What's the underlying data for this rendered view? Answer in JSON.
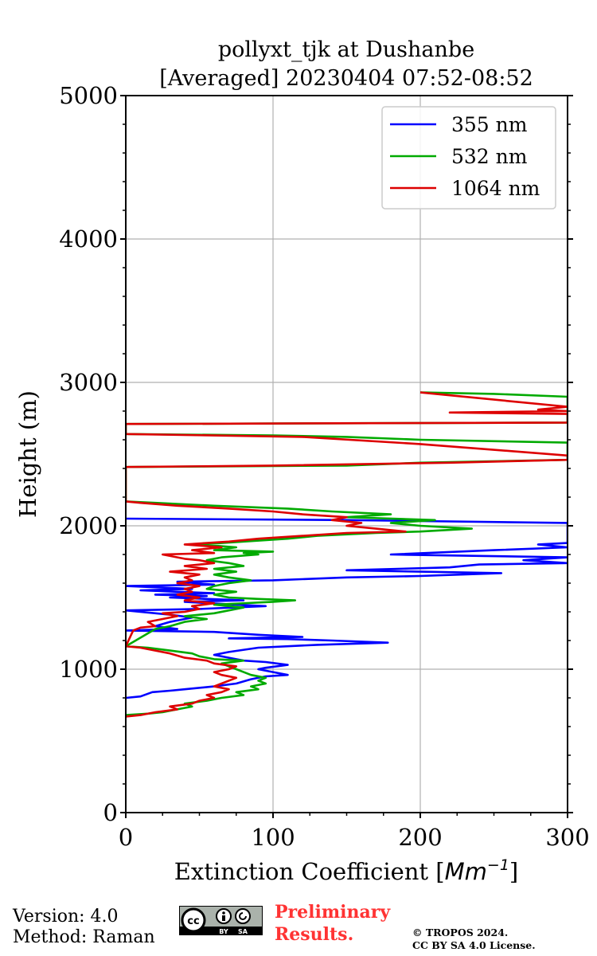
{
  "chart_data": {
    "type": "line",
    "title_line1": "pollyxt_tjk at Dushanbe",
    "title_line2": "[Averaged] 20230404 07:52-08:52",
    "xlabel_text": "Extinction Coefficient [",
    "xlabel_unit": "Mm",
    "xlabel_exp": "−1",
    "xlabel_close": "]",
    "ylabel": "Height (m)",
    "xlim": [
      0,
      300
    ],
    "ylim": [
      0,
      5000
    ],
    "xticks": [
      0,
      100,
      200,
      300
    ],
    "xtick_labels": [
      "0",
      "100",
      "200",
      "300"
    ],
    "yticks": [
      0,
      1000,
      2000,
      3000,
      4000,
      5000
    ],
    "ytick_labels": [
      "0",
      "1000",
      "2000",
      "3000",
      "4000",
      "5000"
    ],
    "grid": true,
    "legend_position": "top-right",
    "series": [
      {
        "name": "355 nm",
        "color": "#0000ff",
        "points": [
          [
            0,
            800
          ],
          [
            10,
            810
          ],
          [
            18,
            840
          ],
          [
            30,
            850
          ],
          [
            40,
            860
          ],
          [
            60,
            880
          ],
          [
            75,
            900
          ],
          [
            85,
            930
          ],
          [
            95,
            950
          ],
          [
            110,
            960
          ],
          [
            100,
            980
          ],
          [
            90,
            1000
          ],
          [
            95,
            1010
          ],
          [
            110,
            1030
          ],
          [
            95,
            1050
          ],
          [
            80,
            1060
          ],
          [
            70,
            1080
          ],
          [
            60,
            1100
          ],
          [
            70,
            1120
          ],
          [
            90,
            1150
          ],
          [
            130,
            1170
          ],
          [
            178,
            1185
          ],
          [
            140,
            1200
          ],
          [
            110,
            1210
          ],
          [
            70,
            1215
          ],
          [
            120,
            1225
          ],
          [
            90,
            1240
          ],
          [
            60,
            1260
          ],
          [
            0,
            1270
          ],
          [
            35,
            1280
          ],
          [
            20,
            1300
          ],
          [
            30,
            1330
          ],
          [
            45,
            1360
          ],
          [
            30,
            1380
          ],
          [
            0,
            1410
          ],
          [
            50,
            1420
          ],
          [
            95,
            1440
          ],
          [
            75,
            1450
          ],
          [
            40,
            1470
          ],
          [
            80,
            1480
          ],
          [
            30,
            1500
          ],
          [
            55,
            1510
          ],
          [
            20,
            1520
          ],
          [
            60,
            1530
          ],
          [
            10,
            1550
          ],
          [
            45,
            1560
          ],
          [
            0,
            1580
          ],
          [
            60,
            1590
          ],
          [
            35,
            1610
          ],
          [
            100,
            1620
          ],
          [
            150,
            1640
          ],
          [
            200,
            1650
          ],
          [
            255,
            1670
          ],
          [
            150,
            1690
          ],
          [
            220,
            1710
          ],
          [
            240,
            1730
          ],
          [
            300,
            1740
          ],
          [
            270,
            1760
          ],
          [
            300,
            1780
          ],
          [
            240,
            1790
          ],
          [
            180,
            1800
          ],
          [
            250,
            1830
          ],
          [
            300,
            1850
          ],
          [
            280,
            1870
          ],
          [
            300,
            1880
          ],
          [
            300,
            2020
          ],
          [
            150,
            2040
          ],
          [
            0,
            2050
          ]
        ]
      },
      {
        "name": "532 nm",
        "color": "#00aa00",
        "points": [
          [
            0,
            680
          ],
          [
            15,
            690
          ],
          [
            25,
            700
          ],
          [
            35,
            720
          ],
          [
            45,
            740
          ],
          [
            40,
            760
          ],
          [
            55,
            780
          ],
          [
            65,
            800
          ],
          [
            80,
            820
          ],
          [
            75,
            840
          ],
          [
            90,
            860
          ],
          [
            85,
            880
          ],
          [
            95,
            900
          ],
          [
            90,
            920
          ],
          [
            95,
            940
          ],
          [
            85,
            960
          ],
          [
            80,
            980
          ],
          [
            75,
            1000
          ],
          [
            70,
            1020
          ],
          [
            65,
            1040
          ],
          [
            80,
            1060
          ],
          [
            60,
            1070
          ],
          [
            50,
            1090
          ],
          [
            45,
            1110
          ],
          [
            30,
            1130
          ],
          [
            15,
            1150
          ],
          [
            0,
            1160
          ],
          [
            20,
            1280
          ],
          [
            30,
            1300
          ],
          [
            40,
            1330
          ],
          [
            55,
            1350
          ],
          [
            40,
            1370
          ],
          [
            60,
            1390
          ],
          [
            70,
            1410
          ],
          [
            80,
            1430
          ],
          [
            60,
            1450
          ],
          [
            100,
            1470
          ],
          [
            115,
            1480
          ],
          [
            90,
            1490
          ],
          [
            70,
            1500
          ],
          [
            60,
            1520
          ],
          [
            75,
            1540
          ],
          [
            55,
            1560
          ],
          [
            60,
            1580
          ],
          [
            70,
            1600
          ],
          [
            85,
            1620
          ],
          [
            70,
            1640
          ],
          [
            60,
            1660
          ],
          [
            75,
            1680
          ],
          [
            60,
            1700
          ],
          [
            80,
            1720
          ],
          [
            70,
            1740
          ],
          [
            55,
            1760
          ],
          [
            65,
            1780
          ],
          [
            90,
            1800
          ],
          [
            80,
            1810
          ],
          [
            100,
            1820
          ],
          [
            60,
            1830
          ],
          [
            75,
            1850
          ],
          [
            50,
            1870
          ],
          [
            80,
            1890
          ],
          [
            110,
            1910
          ],
          [
            130,
            1930
          ],
          [
            170,
            1950
          ],
          [
            200,
            1960
          ],
          [
            235,
            1980
          ],
          [
            200,
            2000
          ],
          [
            180,
            2020
          ],
          [
            210,
            2040
          ],
          [
            150,
            2060
          ],
          [
            180,
            2080
          ],
          [
            140,
            2100
          ],
          [
            110,
            2120
          ],
          [
            60,
            2140
          ],
          [
            20,
            2160
          ],
          [
            0,
            2170
          ],
          [
            0,
            2410
          ],
          [
            150,
            2420
          ],
          [
            200,
            2440
          ],
          [
            300,
            2460
          ],
          [
            300,
            2580
          ],
          [
            200,
            2600
          ],
          [
            150,
            2620
          ],
          [
            100,
            2630
          ],
          [
            0,
            2640
          ],
          [
            0,
            2710
          ],
          [
            300,
            2720
          ],
          [
            300,
            2900
          ],
          [
            250,
            2920
          ],
          [
            200,
            2930
          ]
        ]
      },
      {
        "name": "1064 nm",
        "color": "#dd0000",
        "points": [
          [
            0,
            670
          ],
          [
            10,
            680
          ],
          [
            20,
            700
          ],
          [
            35,
            720
          ],
          [
            30,
            740
          ],
          [
            45,
            760
          ],
          [
            50,
            780
          ],
          [
            60,
            800
          ],
          [
            55,
            820
          ],
          [
            65,
            840
          ],
          [
            70,
            860
          ],
          [
            60,
            880
          ],
          [
            65,
            900
          ],
          [
            70,
            920
          ],
          [
            75,
            940
          ],
          [
            65,
            960
          ],
          [
            60,
            980
          ],
          [
            70,
            1000
          ],
          [
            75,
            1020
          ],
          [
            60,
            1040
          ],
          [
            55,
            1060
          ],
          [
            40,
            1080
          ],
          [
            30,
            1110
          ],
          [
            20,
            1130
          ],
          [
            10,
            1150
          ],
          [
            0,
            1160
          ],
          [
            5,
            1270
          ],
          [
            10,
            1290
          ],
          [
            20,
            1300
          ],
          [
            15,
            1330
          ],
          [
            25,
            1350
          ],
          [
            35,
            1370
          ],
          [
            25,
            1390
          ],
          [
            40,
            1400
          ],
          [
            50,
            1420
          ],
          [
            45,
            1440
          ],
          [
            60,
            1460
          ],
          [
            40,
            1480
          ],
          [
            50,
            1500
          ],
          [
            35,
            1520
          ],
          [
            45,
            1540
          ],
          [
            40,
            1560
          ],
          [
            50,
            1580
          ],
          [
            35,
            1600
          ],
          [
            45,
            1620
          ],
          [
            40,
            1640
          ],
          [
            50,
            1660
          ],
          [
            30,
            1680
          ],
          [
            55,
            1700
          ],
          [
            40,
            1720
          ],
          [
            60,
            1740
          ],
          [
            50,
            1760
          ],
          [
            40,
            1770
          ],
          [
            25,
            1800
          ],
          [
            60,
            1810
          ],
          [
            45,
            1830
          ],
          [
            65,
            1850
          ],
          [
            40,
            1870
          ],
          [
            70,
            1890
          ],
          [
            90,
            1910
          ],
          [
            120,
            1930
          ],
          [
            150,
            1950
          ],
          [
            190,
            1960
          ],
          [
            170,
            1980
          ],
          [
            150,
            2000
          ],
          [
            160,
            2020
          ],
          [
            140,
            2040
          ],
          [
            150,
            2060
          ],
          [
            120,
            2080
          ],
          [
            100,
            2100
          ],
          [
            70,
            2120
          ],
          [
            35,
            2140
          ],
          [
            10,
            2160
          ],
          [
            0,
            2170
          ],
          [
            0,
            2410
          ],
          [
            100,
            2420
          ],
          [
            220,
            2440
          ],
          [
            300,
            2460
          ],
          [
            300,
            2490
          ],
          [
            200,
            2570
          ],
          [
            120,
            2620
          ],
          [
            0,
            2640
          ],
          [
            0,
            2710
          ],
          [
            300,
            2720
          ],
          [
            300,
            2780
          ],
          [
            220,
            2790
          ],
          [
            300,
            2800
          ],
          [
            280,
            2810
          ],
          [
            300,
            2830
          ],
          [
            200,
            2930
          ]
        ]
      }
    ]
  },
  "footer": {
    "version": "Version: 4.0",
    "method": "Method: Raman",
    "license_badge_main": "cc",
    "license_badge_by": "BY",
    "license_badge_sa": "SA",
    "preliminary_line1": "Preliminary",
    "preliminary_line2": "Results.",
    "copyright_line1": "© TROPOS 2024.",
    "copyright_line2": "CC BY SA 4.0 License."
  }
}
